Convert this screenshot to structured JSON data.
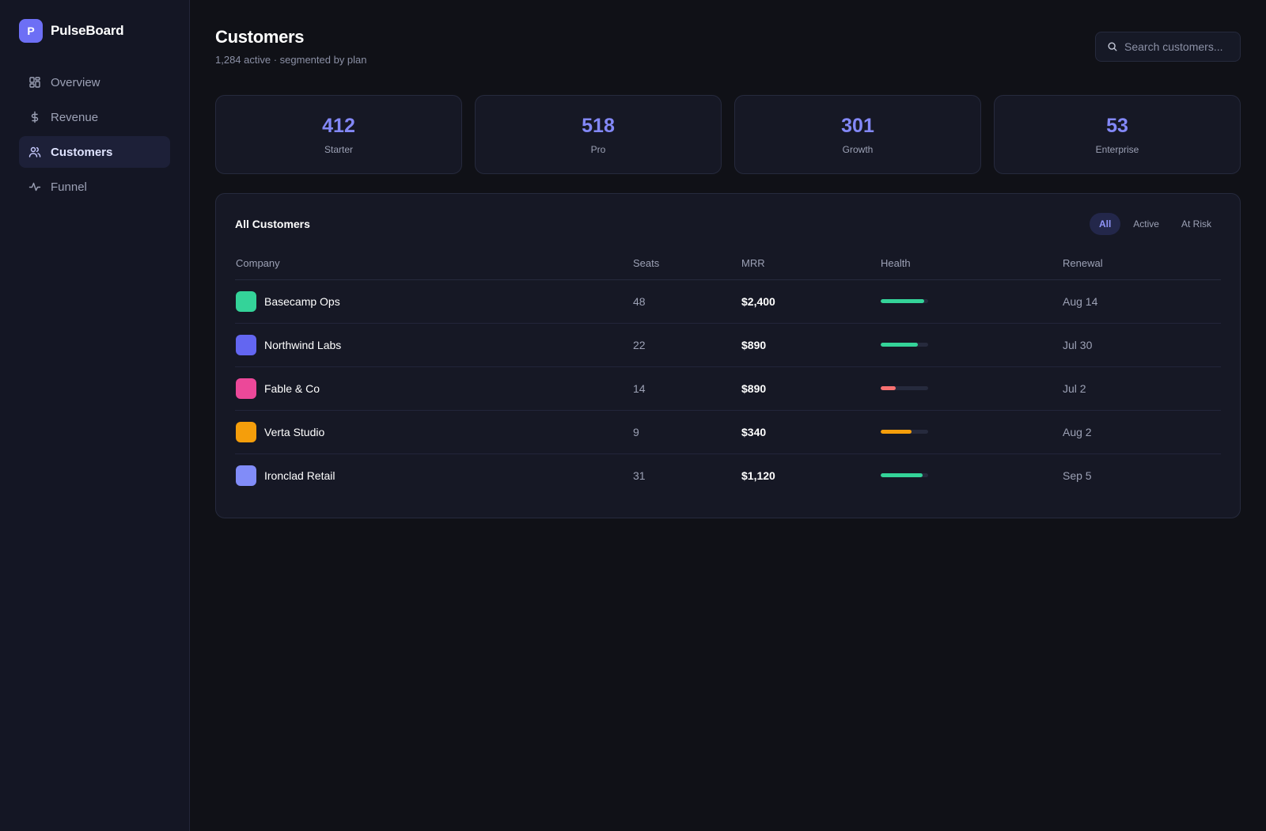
{
  "brand": {
    "logo_letter": "P",
    "name": "PulseBoard"
  },
  "sidebar": {
    "items": [
      {
        "label": "Overview",
        "icon": "grid-icon",
        "active": false
      },
      {
        "label": "Revenue",
        "icon": "dollar-icon",
        "active": false
      },
      {
        "label": "Customers",
        "icon": "users-icon",
        "active": true
      },
      {
        "label": "Funnel",
        "icon": "activity-icon",
        "active": false
      }
    ]
  },
  "header": {
    "title": "Customers",
    "subtitle": "1,284 active · segmented by plan",
    "search_placeholder": "Search customers..."
  },
  "stats": [
    {
      "value": "412",
      "label": "Starter"
    },
    {
      "value": "518",
      "label": "Pro"
    },
    {
      "value": "301",
      "label": "Growth"
    },
    {
      "value": "53",
      "label": "Enterprise"
    }
  ],
  "table": {
    "title": "All Customers",
    "filters": [
      {
        "label": "All",
        "active": true
      },
      {
        "label": "Active",
        "active": false
      },
      {
        "label": "At Risk",
        "active": false
      }
    ],
    "columns": [
      "Company",
      "Seats",
      "MRR",
      "Health",
      "Renewal"
    ],
    "rows": [
      {
        "company": "Basecamp Ops",
        "color": "#34d399",
        "seats": "48",
        "mrr": "$2,400",
        "health": 0.92,
        "health_color": "#34d399",
        "renewal": "Aug 14"
      },
      {
        "company": "Northwind Labs",
        "color": "#6366f1",
        "seats": "22",
        "mrr": "$890",
        "health": 0.78,
        "health_color": "#34d399",
        "renewal": "Jul 30"
      },
      {
        "company": "Fable & Co",
        "color": "#ec4899",
        "seats": "14",
        "mrr": "$890",
        "health": 0.32,
        "health_color": "#f87171",
        "renewal": "Jul 2"
      },
      {
        "company": "Verta Studio",
        "color": "#f59e0b",
        "seats": "9",
        "mrr": "$340",
        "health": 0.65,
        "health_color": "#f59e0b",
        "renewal": "Aug 2"
      },
      {
        "company": "Ironclad Retail",
        "color": "#818cf8",
        "seats": "31",
        "mrr": "$1,120",
        "health": 0.88,
        "health_color": "#34d399",
        "renewal": "Sep 5"
      }
    ]
  }
}
